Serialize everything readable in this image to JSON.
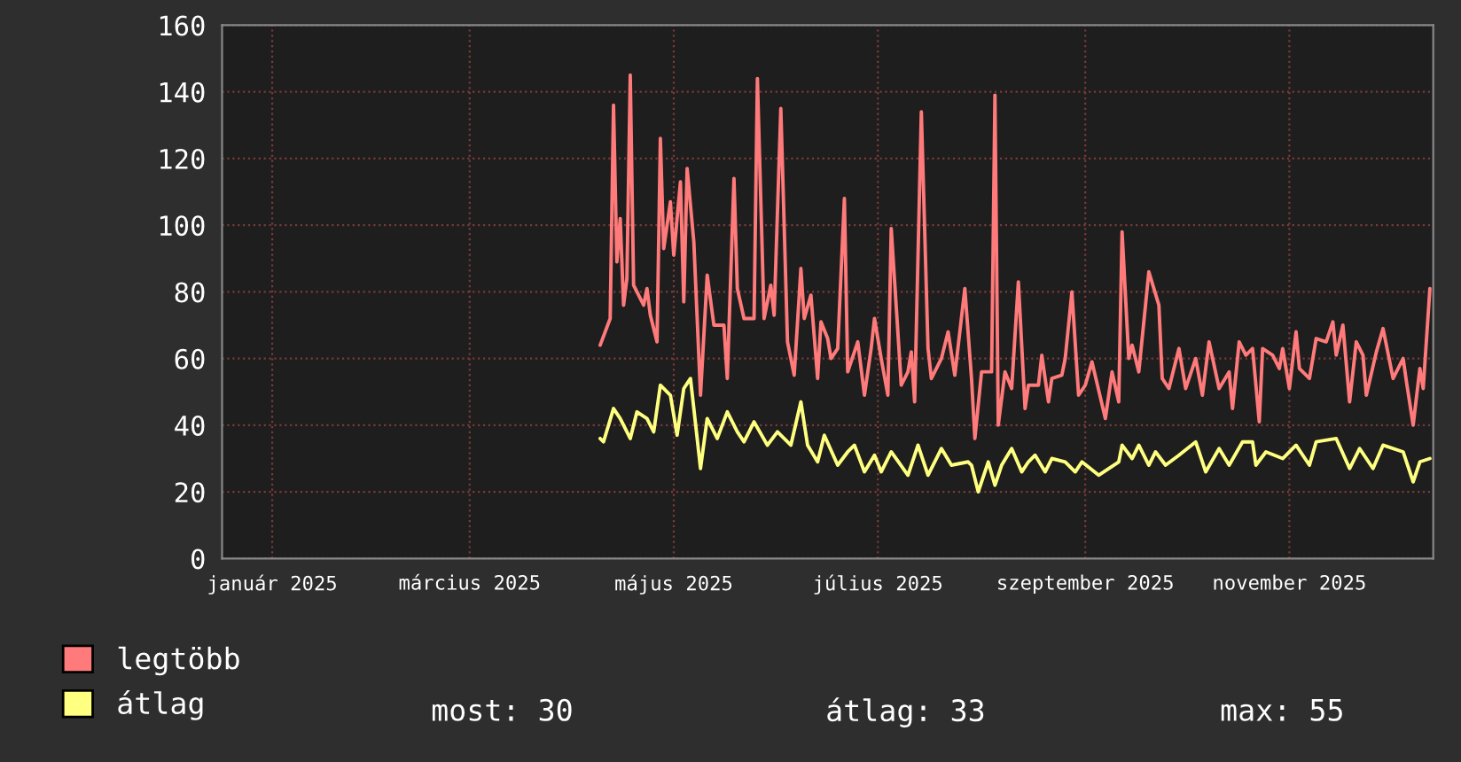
{
  "chart_data": {
    "type": "line",
    "xlim": [
      "2024-12-17",
      "2025-12-14"
    ],
    "xticks": [
      {
        "value": "2025-01-01",
        "label": "január 2025"
      },
      {
        "value": "2025-03-01",
        "label": "március 2025"
      },
      {
        "value": "2025-05-01",
        "label": "május 2025"
      },
      {
        "value": "2025-07-01",
        "label": "július 2025"
      },
      {
        "value": "2025-09-01",
        "label": "szeptember 2025"
      },
      {
        "value": "2025-11-01",
        "label": "november 2025"
      }
    ],
    "ylim": [
      0,
      160
    ],
    "yticks": [
      0,
      20,
      40,
      60,
      80,
      100,
      120,
      140,
      160
    ],
    "grid": true,
    "legend": "bottom",
    "annotations": [
      "most: 30",
      "átlag: 33",
      "max: 55"
    ],
    "series": [
      {
        "name": "legtöbb",
        "color": "#ff7a7a",
        "x": [
          "2025-04-09",
          "2025-04-12",
          "2025-04-13",
          "2025-04-14",
          "2025-04-15",
          "2025-04-16",
          "2025-04-17",
          "2025-04-18",
          "2025-04-19",
          "2025-04-22",
          "2025-04-23",
          "2025-04-24",
          "2025-04-26",
          "2025-04-27",
          "2025-04-28",
          "2025-04-30",
          "2025-05-01",
          "2025-05-03",
          "2025-05-04",
          "2025-05-05",
          "2025-05-07",
          "2025-05-09",
          "2025-05-11",
          "2025-05-13",
          "2025-05-16",
          "2025-05-17",
          "2025-05-19",
          "2025-05-20",
          "2025-05-22",
          "2025-05-25",
          "2025-05-26",
          "2025-05-28",
          "2025-05-30",
          "2025-05-31",
          "2025-06-02",
          "2025-06-04",
          "2025-06-06",
          "2025-06-08",
          "2025-06-09",
          "2025-06-11",
          "2025-06-13",
          "2025-06-14",
          "2025-06-16",
          "2025-06-17",
          "2025-06-19",
          "2025-06-21",
          "2025-06-22",
          "2025-06-25",
          "2025-06-27",
          "2025-06-29",
          "2025-06-30",
          "2025-07-02",
          "2025-07-04",
          "2025-07-05",
          "2025-07-08",
          "2025-07-10",
          "2025-07-11",
          "2025-07-12",
          "2025-07-14",
          "2025-07-16",
          "2025-07-17",
          "2025-07-20",
          "2025-07-22",
          "2025-07-24",
          "2025-07-27",
          "2025-07-29",
          "2025-07-30",
          "2025-08-01",
          "2025-08-04",
          "2025-08-05",
          "2025-08-06",
          "2025-08-08",
          "2025-08-10",
          "2025-08-12",
          "2025-08-14",
          "2025-08-15",
          "2025-08-18",
          "2025-08-19",
          "2025-08-21",
          "2025-08-22",
          "2025-08-25",
          "2025-08-26",
          "2025-08-28",
          "2025-08-30",
          "2025-09-01",
          "2025-09-03",
          "2025-09-07",
          "2025-09-09",
          "2025-09-11",
          "2025-09-12",
          "2025-09-14",
          "2025-09-15",
          "2025-09-17",
          "2025-09-20",
          "2025-09-23",
          "2025-09-24",
          "2025-09-26",
          "2025-09-29",
          "2025-10-01",
          "2025-10-04",
          "2025-10-06",
          "2025-10-08",
          "2025-10-11",
          "2025-10-14",
          "2025-10-15",
          "2025-10-17",
          "2025-10-19",
          "2025-10-21",
          "2025-10-23",
          "2025-10-24",
          "2025-10-27",
          "2025-10-29",
          "2025-10-30",
          "2025-11-01",
          "2025-11-03",
          "2025-11-04",
          "2025-11-07",
          "2025-11-09",
          "2025-11-12",
          "2025-11-14",
          "2025-11-15",
          "2025-11-17",
          "2025-11-19",
          "2025-11-21",
          "2025-11-23",
          "2025-11-24",
          "2025-11-27",
          "2025-11-29",
          "2025-12-02",
          "2025-12-05",
          "2025-12-06",
          "2025-12-08",
          "2025-12-10",
          "2025-12-11",
          "2025-12-13"
        ],
        "values": [
          64,
          72,
          136,
          89,
          102,
          76,
          84,
          145,
          82,
          76,
          81,
          73,
          65,
          126,
          93,
          107,
          91,
          113,
          77,
          117,
          95,
          49,
          85,
          70,
          70,
          54,
          114,
          81,
          72,
          72,
          144,
          72,
          82,
          73,
          135,
          65,
          55,
          87,
          72,
          79,
          54,
          71,
          66,
          60,
          63,
          108,
          56,
          65,
          49,
          63,
          72,
          60,
          49,
          99,
          52,
          56,
          62,
          47,
          134,
          63,
          54,
          60,
          68,
          55,
          81,
          54,
          36,
          56,
          56,
          139,
          40,
          56,
          51,
          83,
          45,
          52,
          52,
          61,
          47,
          54,
          55,
          60,
          80,
          49,
          52,
          59,
          42,
          56,
          47,
          98,
          60,
          64,
          56,
          86,
          76,
          54,
          51,
          63,
          51,
          60,
          49,
          65,
          51,
          56,
          45,
          65,
          61,
          63,
          41,
          63,
          61,
          57,
          63,
          51,
          68,
          57,
          54,
          66,
          65,
          71,
          61,
          70,
          47,
          65,
          61,
          49,
          62,
          69,
          54,
          60,
          53,
          40,
          57,
          51,
          81
        ]
      },
      {
        "name": "átlag",
        "color": "#ffff80",
        "x": [
          "2025-04-09",
          "2025-04-10",
          "2025-04-13",
          "2025-04-15",
          "2025-04-18",
          "2025-04-20",
          "2025-04-23",
          "2025-04-25",
          "2025-04-27",
          "2025-04-30",
          "2025-05-02",
          "2025-05-04",
          "2025-05-06",
          "2025-05-09",
          "2025-05-11",
          "2025-05-14",
          "2025-05-17",
          "2025-05-20",
          "2025-05-22",
          "2025-05-25",
          "2025-05-29",
          "2025-06-01",
          "2025-06-05",
          "2025-06-08",
          "2025-06-10",
          "2025-06-13",
          "2025-06-15",
          "2025-06-19",
          "2025-06-22",
          "2025-06-24",
          "2025-06-27",
          "2025-06-30",
          "2025-07-02",
          "2025-07-05",
          "2025-07-10",
          "2025-07-13",
          "2025-07-16",
          "2025-07-20",
          "2025-07-23",
          "2025-07-28",
          "2025-07-29",
          "2025-07-31",
          "2025-08-03",
          "2025-08-05",
          "2025-08-07",
          "2025-08-10",
          "2025-08-13",
          "2025-08-15",
          "2025-08-17",
          "2025-08-20",
          "2025-08-22",
          "2025-08-26",
          "2025-08-29",
          "2025-08-31",
          "2025-09-05",
          "2025-09-08",
          "2025-09-11",
          "2025-09-12",
          "2025-09-15",
          "2025-09-17",
          "2025-09-20",
          "2025-09-22",
          "2025-09-25",
          "2025-09-29",
          "2025-10-04",
          "2025-10-07",
          "2025-10-11",
          "2025-10-14",
          "2025-10-18",
          "2025-10-21",
          "2025-10-22",
          "2025-10-25",
          "2025-10-30",
          "2025-11-03",
          "2025-11-07",
          "2025-11-09",
          "2025-11-15",
          "2025-11-19",
          "2025-11-22",
          "2025-11-26",
          "2025-11-29",
          "2025-12-05",
          "2025-12-08",
          "2025-12-10",
          "2025-12-13"
        ],
        "values": [
          36,
          35,
          45,
          42,
          36,
          44,
          42,
          38,
          52,
          49,
          37,
          51,
          54,
          27,
          42,
          36,
          44,
          38,
          35,
          41,
          34,
          38,
          34,
          47,
          34,
          29,
          37,
          28,
          32,
          34,
          26,
          31,
          26,
          32,
          25,
          34,
          25,
          33,
          28,
          29,
          28,
          20,
          29,
          22,
          28,
          33,
          26,
          29,
          31,
          26,
          30,
          29,
          26,
          29,
          25,
          27,
          29,
          34,
          30,
          34,
          28,
          32,
          28,
          31,
          35,
          26,
          33,
          28,
          35,
          35,
          28,
          32,
          30,
          34,
          28,
          35,
          36,
          27,
          33,
          27,
          34,
          32,
          23,
          29,
          30
        ]
      }
    ]
  }
}
